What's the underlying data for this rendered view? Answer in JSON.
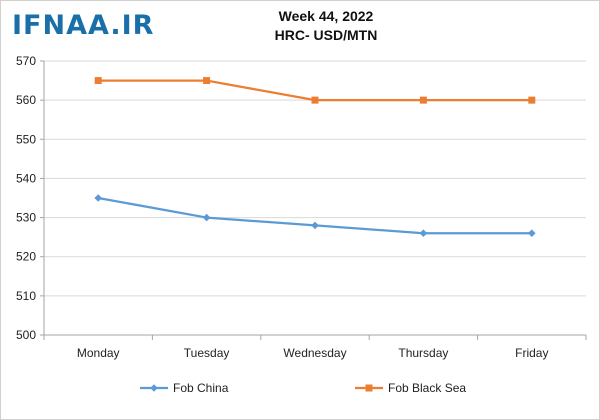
{
  "logo": {
    "text": "IFNAA.IR"
  },
  "chart_data": {
    "type": "line",
    "title": "Week 44, 2022",
    "subtitle": "HRC- USD/MTN",
    "xlabel": "",
    "ylabel": "",
    "categories": [
      "Monday",
      "Tuesday",
      "Wednesday",
      "Thursday",
      "Friday"
    ],
    "ylim": [
      500,
      570
    ],
    "yticks": [
      500,
      510,
      520,
      530,
      540,
      550,
      560,
      570
    ],
    "grid": "horizontal",
    "legend_position": "bottom",
    "series": [
      {
        "name": "Fob China",
        "values": [
          535,
          530,
          528,
          526,
          526
        ],
        "color": "#5b9bd5",
        "marker": "diamond"
      },
      {
        "name": "Fob Black Sea",
        "values": [
          565,
          565,
          560,
          560,
          560
        ],
        "color": "#ed7d31",
        "marker": "square"
      }
    ]
  }
}
